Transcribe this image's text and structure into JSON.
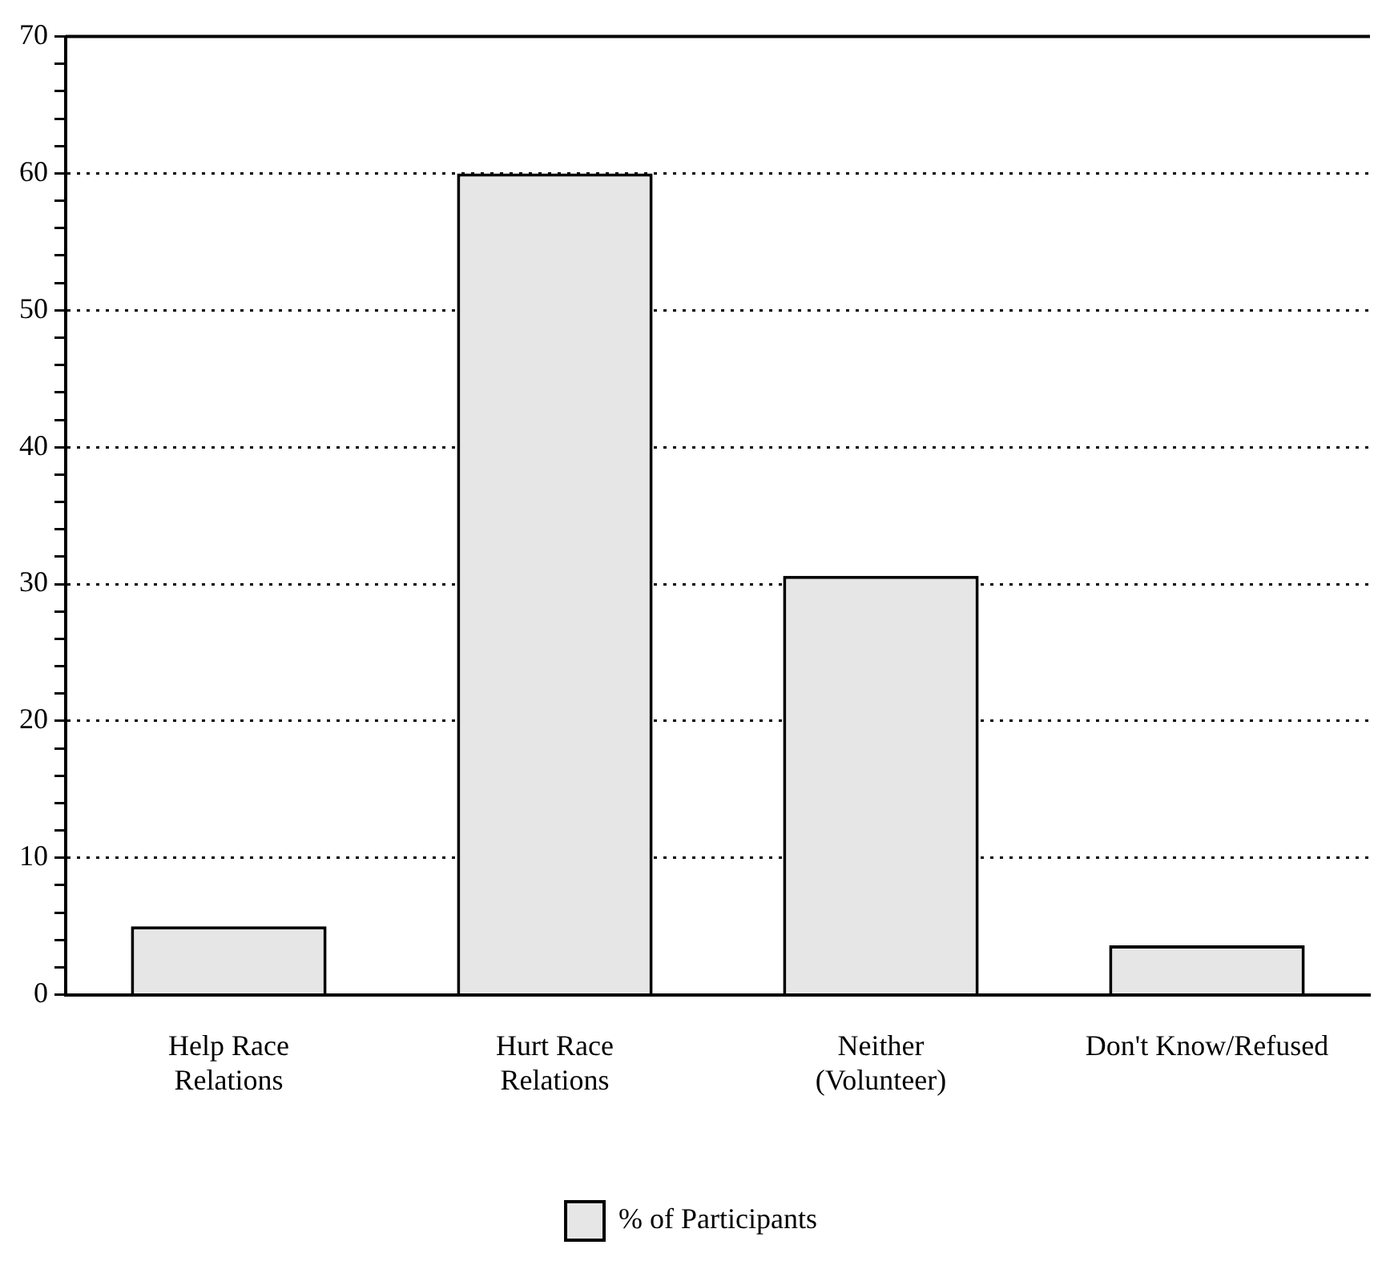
{
  "chart_data": {
    "type": "bar",
    "categories": [
      "Help Race\nRelations",
      "Hurt Race\nRelations",
      "Neither\n(Volunteer)",
      "Don't Know/Refused"
    ],
    "series": [
      {
        "name": "% of Participants",
        "color": "#e6e6e6",
        "values": [
          5,
          60,
          30.6,
          3.6
        ]
      }
    ],
    "ylim": [
      0,
      70
    ],
    "yticks": [
      0,
      {
        "value": 2,
        "label": null
      },
      {
        "value": 4,
        "label": null
      },
      {
        "value": 6,
        "label": null
      },
      {
        "value": 8,
        "label": null
      },
      10,
      {
        "value": 12,
        "label": null
      },
      {
        "value": 14,
        "label": null
      },
      {
        "value": 16,
        "label": null
      },
      {
        "value": 18,
        "label": null
      },
      20,
      {
        "value": 22,
        "label": null
      },
      {
        "value": 24,
        "label": null
      },
      {
        "value": 26,
        "label": null
      },
      {
        "value": 28,
        "label": null
      },
      30,
      {
        "value": 32,
        "label": null
      },
      {
        "value": 34,
        "label": null
      },
      {
        "value": 36,
        "label": null
      },
      {
        "value": 38,
        "label": null
      },
      40,
      {
        "value": 42,
        "label": null
      },
      {
        "value": 44,
        "label": null
      },
      {
        "value": 46,
        "label": null
      },
      {
        "value": 48,
        "label": null
      },
      50,
      {
        "value": 52,
        "label": null
      },
      {
        "value": 54,
        "label": null
      },
      {
        "value": 56,
        "label": null
      },
      {
        "value": 58,
        "label": null
      },
      60,
      {
        "value": 62,
        "label": null
      },
      {
        "value": 64,
        "label": null
      },
      {
        "value": 66,
        "label": null
      },
      {
        "value": 68,
        "label": null
      },
      70
    ],
    "grid": "y",
    "legend": "bottom"
  }
}
